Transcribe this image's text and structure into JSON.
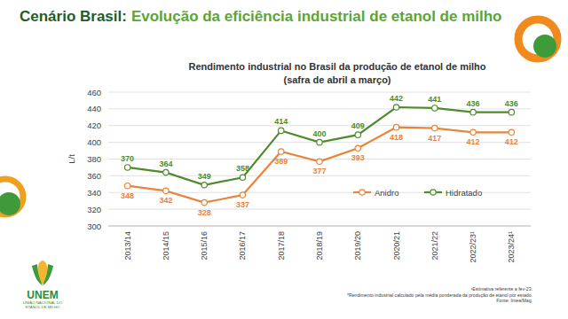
{
  "header": {
    "prefix": "Cenário Brasil:",
    "title": "Evolução da eficiência industrial de etanol de milho"
  },
  "chart_data": {
    "type": "line",
    "title": "Rendimento industrial  no Brasil da produção de etanol de milho",
    "subtitle": "(safra de abril a março)",
    "y_label": "L/t",
    "categories": [
      "2013/14",
      "2014/15",
      "2015/16",
      "2016/17",
      "2017/18",
      "2018/19",
      "2019/20",
      "2020/21",
      "2021/22",
      "2022/23¹",
      "2023/24¹"
    ],
    "series": [
      {
        "name": "Anidro",
        "color": "#e8843a",
        "marker": "circle",
        "values": [
          348,
          342,
          328,
          337,
          389,
          377,
          393,
          418,
          417,
          412,
          412
        ]
      },
      {
        "name": "Hidratado",
        "color": "#4e8b2c",
        "marker": "circle",
        "values": [
          370,
          364,
          349,
          358,
          414,
          400,
          409,
          442,
          441,
          436,
          436
        ]
      }
    ],
    "ylim": [
      300,
      460
    ],
    "yticks": [
      300,
      320,
      340,
      360,
      380,
      400,
      420,
      440,
      460
    ],
    "grid": true,
    "data_labels": true,
    "legend": "right"
  },
  "footnotes": [
    "¹Estimativa referente a fev-23.",
    "*Rendimento industrial calculado pela média ponderada da produção de etanol por estado.",
    "Fonte: Imea/Mag."
  ],
  "logo": {
    "name": "UNEM",
    "tagline": [
      "UNIÃO NACIONAL DO",
      "ETANOL DE MILHO"
    ]
  }
}
